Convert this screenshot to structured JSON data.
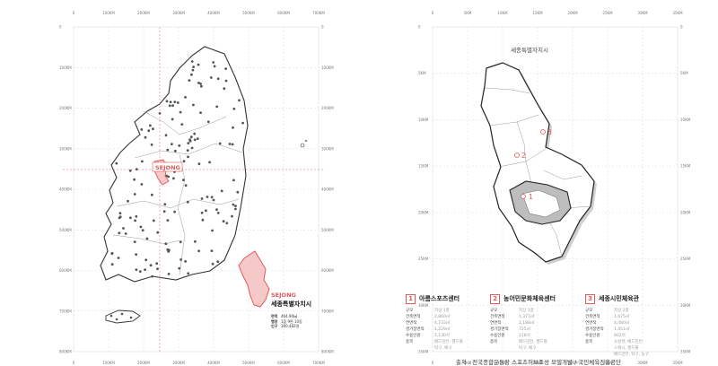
{
  "left_map": {
    "top_ticks": [
      "0",
      "100KM",
      "200KM",
      "300KM",
      "400KM",
      "500KM",
      "600KM",
      "700KM"
    ],
    "side_ticks": [
      "0",
      "100KM",
      "200KM",
      "300KM",
      "400KM",
      "500KM",
      "600KM",
      "700KM",
      "800KM"
    ],
    "highlight_label": "SEJONG",
    "inset": {
      "label_en": "SEJONG",
      "label_ko": "세종특별자치시",
      "stats": [
        {
          "key": "면적",
          "value": "464.90㎢"
        },
        {
          "key": "행정",
          "value": "1읍 9면 10동"
        },
        {
          "key": "인구",
          "value": "390,482명"
        }
      ]
    }
  },
  "right_map": {
    "title": "세종특별자치시",
    "top_ticks": [
      "0",
      "5KM",
      "10KM",
      "15KM",
      "20KM",
      "25KM",
      "30KM",
      "35KM"
    ],
    "side_ticks": [
      "0",
      "5KM",
      "10KM",
      "15KM",
      "20KM",
      "25KM",
      "30KM",
      "35KM"
    ],
    "markers": [
      "1",
      "2",
      "3"
    ]
  },
  "facilities": [
    {
      "num": "1",
      "name": "아름스포츠센터",
      "rows": [
        {
          "key": "규모",
          "value": "지상 1층"
        },
        {
          "key": "건축면적",
          "value": "2,860㎡"
        },
        {
          "key": "연면적",
          "value": "4,733㎡"
        },
        {
          "key": "경기장면적",
          "value": "1,229㎡"
        },
        {
          "key": "수용인원",
          "value": "1,130석"
        },
        {
          "key": "종목",
          "value": "배드민턴, 헨드볼"
        },
        {
          "key": "",
          "value": "탁구, 배구"
        }
      ]
    },
    {
      "num": "2",
      "name": "농어민문화체육센터",
      "rows": [
        {
          "key": "규모",
          "value": "지상 1층"
        },
        {
          "key": "건축면적",
          "value": "1,377㎡"
        },
        {
          "key": "연면적",
          "value": "2,188㎡"
        },
        {
          "key": "경기장면적",
          "value": "725㎡"
        },
        {
          "key": "수용인원",
          "value": "218석"
        },
        {
          "key": "종목",
          "value": "배드민턴, 헨드볼"
        },
        {
          "key": "",
          "value": "탁구, 배구"
        }
      ]
    },
    {
      "num": "3",
      "name": "세종시민체육관",
      "rows": [
        {
          "key": "규모",
          "value": "지상 2층"
        },
        {
          "key": "건축면적",
          "value": "1,675㎡"
        },
        {
          "key": "연면적",
          "value": "4,480㎡"
        },
        {
          "key": "경기장면적",
          "value": "1,451㎡"
        },
        {
          "key": "수용인원",
          "value": "802석"
        },
        {
          "key": "종목",
          "value": "소방관, 배드민턴"
        },
        {
          "key": "",
          "value": "스쿼시, 헨드볼"
        },
        {
          "key": "",
          "value": "배드민턴, 탁구, 농구"
        }
      ]
    }
  ],
  "source_note": "출처 : 전국종합운동장 스포츠허브조성 모델개발 / 국민체육진흥공단",
  "colors": {
    "accent": "#e05a5a",
    "highlight_fill": "#f6c9c9",
    "grid": "#d6d6d6",
    "dot": "#555555"
  }
}
